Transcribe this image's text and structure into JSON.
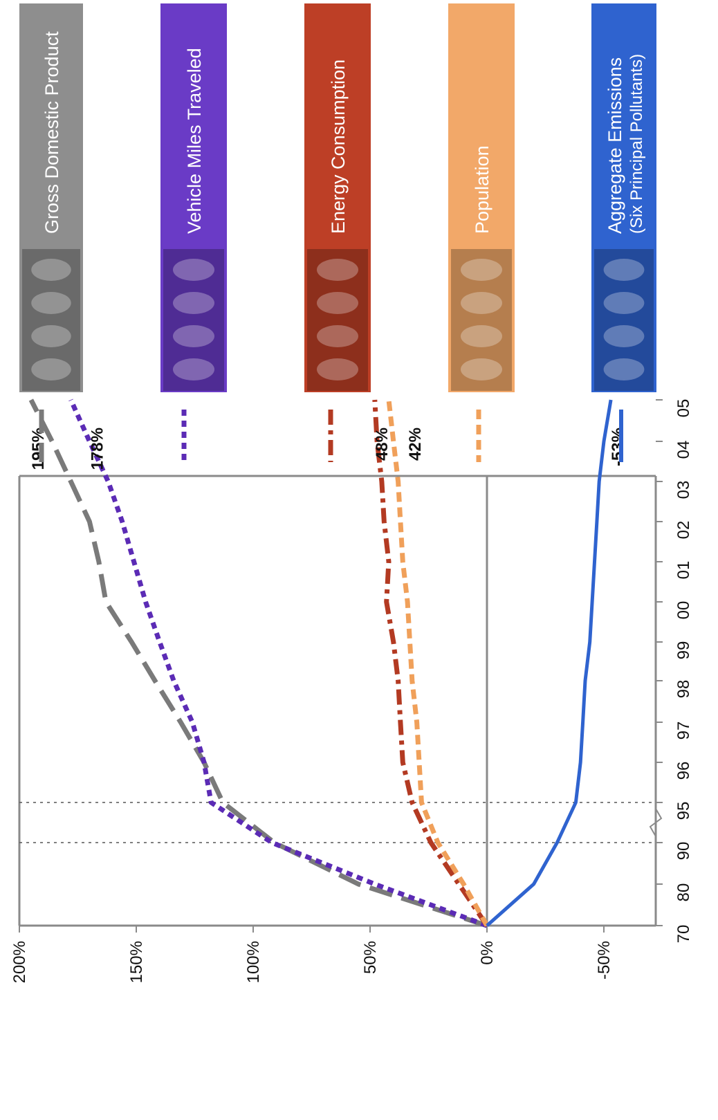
{
  "chart_data": {
    "type": "line",
    "orientation": "rotated-90-clockwise",
    "title": "",
    "xlabel": "",
    "ylabel": "",
    "x_ticks": [
      "70",
      "80",
      "90",
      "95",
      "96",
      "97",
      "98",
      "99",
      "00",
      "01",
      "02",
      "03",
      "04",
      "05"
    ],
    "x_axis_break_between": [
      "90",
      "95"
    ],
    "y_ticks": [
      {
        "value": 200,
        "label": "200%"
      },
      {
        "value": 150,
        "label": "150%"
      },
      {
        "value": 100,
        "label": "100%"
      },
      {
        "value": 50,
        "label": "50%"
      },
      {
        "value": 0,
        "label": "0%"
      },
      {
        "value": -50,
        "label": "-50%"
      }
    ],
    "ylim": [
      -60,
      200
    ],
    "reference_lines": [
      "90",
      "95"
    ],
    "series": [
      {
        "name": "Gross Domestic Product",
        "color": "#7a7a7a",
        "dash": "long-dash",
        "values": [
          0,
          55,
          91,
          113,
          121,
          131,
          142,
          152,
          163,
          166,
          170,
          178,
          186,
          195
        ],
        "end_label": "195%"
      },
      {
        "name": "Vehicle Miles Traveled",
        "color": "#5b2bb5",
        "dash": "dotted",
        "values": [
          0,
          48,
          92,
          118,
          121,
          126,
          134,
          140,
          146,
          151,
          156,
          162,
          170,
          178
        ],
        "end_label": "178%"
      },
      {
        "name": "Energy Consumption",
        "color": "#b33a22",
        "dash": "dash-dot",
        "values": [
          0,
          12,
          24,
          32,
          36,
          37,
          38,
          40,
          43,
          42,
          44,
          45,
          47,
          48
        ],
        "end_label": "48%"
      },
      {
        "name": "Population",
        "color": "#f0a05a",
        "dash": "short-dash",
        "values": [
          0,
          10,
          21,
          28,
          29,
          30,
          32,
          33,
          34,
          36,
          37,
          38,
          40,
          42
        ],
        "end_label": "42%"
      },
      {
        "name": "Aggregate Emissions",
        "subtitle": "(Six Principal Pollutants)",
        "color": "#2f63cf",
        "dash": "solid",
        "values": [
          0,
          -20,
          -30,
          -38,
          -40,
          -41,
          -42,
          -44,
          -45,
          -46,
          -47,
          -48,
          -50,
          -53
        ],
        "end_label": "-53%"
      }
    ]
  },
  "legend": {
    "items": [
      {
        "label": "Gross Domestic Product",
        "color": "#8e8e8e",
        "icon": "factory-goods-photo",
        "dash": "long-dash",
        "line_color": "#7a7a7a"
      },
      {
        "label": "Vehicle Miles Traveled",
        "color": "#6a3bc6",
        "icon": "vehicles-photo",
        "dash": "dotted",
        "line_color": "#5b2bb5"
      },
      {
        "label": "Energy Consumption",
        "color": "#bd3f26",
        "icon": "stove-burner-photo",
        "dash": "dash-dot",
        "line_color": "#b33a22"
      },
      {
        "label": "Population",
        "color": "#f2a869",
        "icon": "baby-face-photo",
        "dash": "short-dash",
        "line_color": "#f0a05a"
      },
      {
        "label": "Aggregate Emissions",
        "sublabel": "(Six Principal Pollutants)",
        "color": "#2f63cf",
        "icon": "smokestacks-photo",
        "dash": "solid",
        "line_color": "#2f63cf"
      }
    ]
  }
}
